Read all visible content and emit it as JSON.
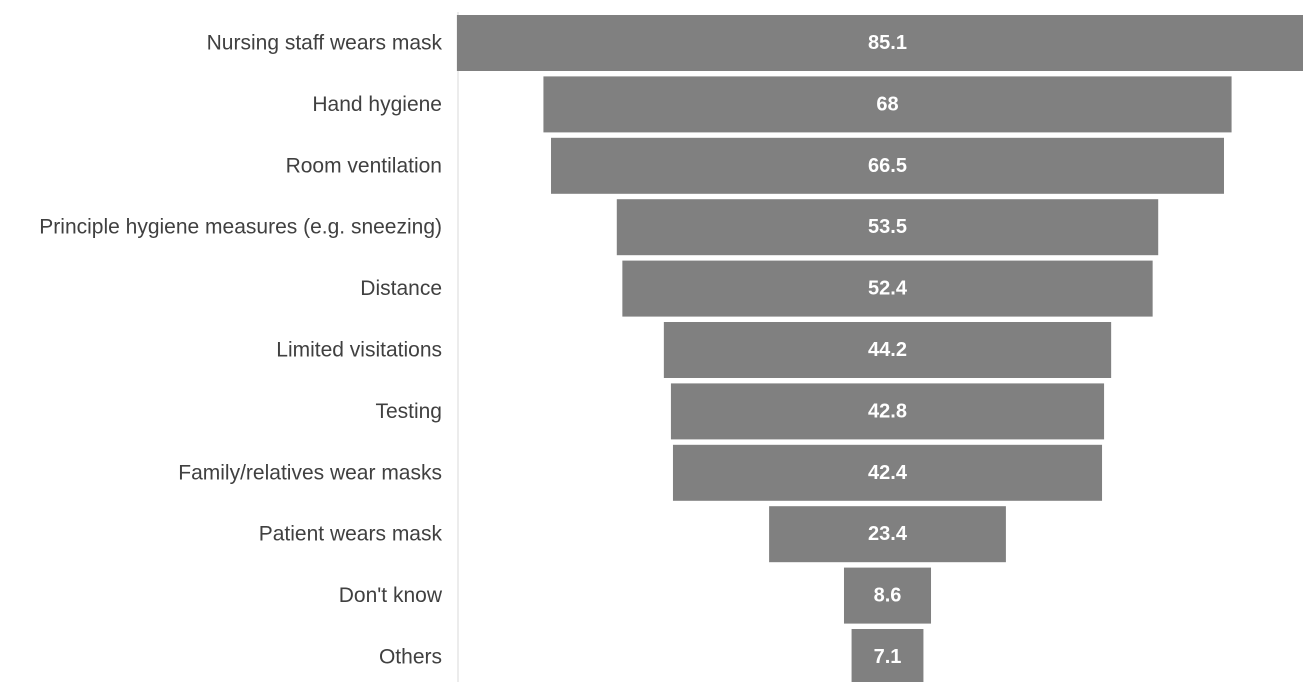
{
  "chart_data": {
    "type": "bar",
    "subtype": "funnel",
    "orientation": "horizontal",
    "title": "",
    "xlabel": "",
    "ylabel": "",
    "categories": [
      "Nursing staff wears mask",
      "Hand hygiene",
      "Room ventilation",
      "Principle hygiene measures (e.g. sneezing)",
      "Distance",
      "Limited visitations",
      "Testing",
      "Family/relatives wear masks",
      "Patient wears mask",
      "Don't know",
      "Others"
    ],
    "values": [
      85.1,
      68,
      66.5,
      53.5,
      52.4,
      44.2,
      42.8,
      42.4,
      23.4,
      8.6,
      7.1
    ],
    "value_labels": [
      "85.1",
      "68",
      "66.5",
      "53.5",
      "52.4",
      "44.2",
      "42.8",
      "42.4",
      "23.4",
      "8.6",
      "7.1"
    ],
    "bar_color": "#808080",
    "label_color": "#404040",
    "value_label_color": "#ffffff",
    "grid": false,
    "legend": "none"
  }
}
